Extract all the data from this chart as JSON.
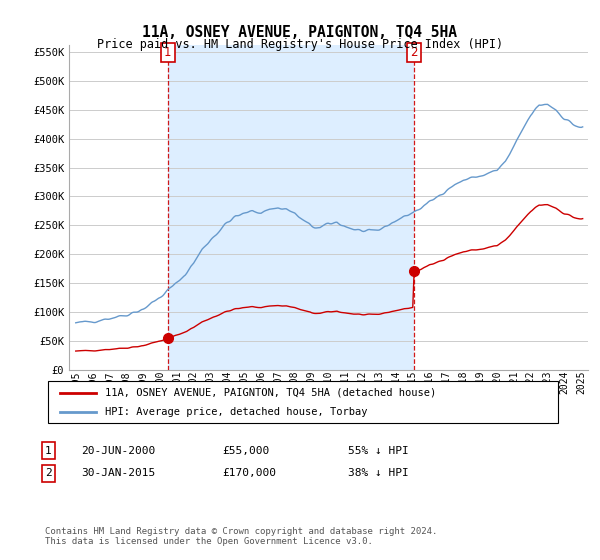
{
  "title": "11A, OSNEY AVENUE, PAIGNTON, TQ4 5HA",
  "subtitle": "Price paid vs. HM Land Registry's House Price Index (HPI)",
  "sale1_date": "20-JUN-2000",
  "sale1_price": 55000,
  "sale1_label": "55% ↓ HPI",
  "sale2_date": "30-JAN-2015",
  "sale2_price": 170000,
  "sale2_label": "38% ↓ HPI",
  "legend_red": "11A, OSNEY AVENUE, PAIGNTON, TQ4 5HA (detached house)",
  "legend_blue": "HPI: Average price, detached house, Torbay",
  "footnote1": "Contains HM Land Registry data © Crown copyright and database right 2024.",
  "footnote2": "This data is licensed under the Open Government Licence v3.0.",
  "ylim": [
    0,
    562500
  ],
  "yticks": [
    0,
    50000,
    100000,
    150000,
    200000,
    250000,
    300000,
    350000,
    400000,
    450000,
    500000,
    550000
  ],
  "ytick_labels": [
    "£0",
    "£50K",
    "£100K",
    "£150K",
    "£200K",
    "£250K",
    "£300K",
    "£350K",
    "£400K",
    "£450K",
    "£500K",
    "£550K"
  ],
  "red_color": "#cc0000",
  "blue_color": "#6699cc",
  "shade_color": "#ddeeff",
  "background_color": "#ffffff",
  "grid_color": "#cccccc",
  "sale1_year": 2000.47,
  "sale2_year": 2015.08
}
